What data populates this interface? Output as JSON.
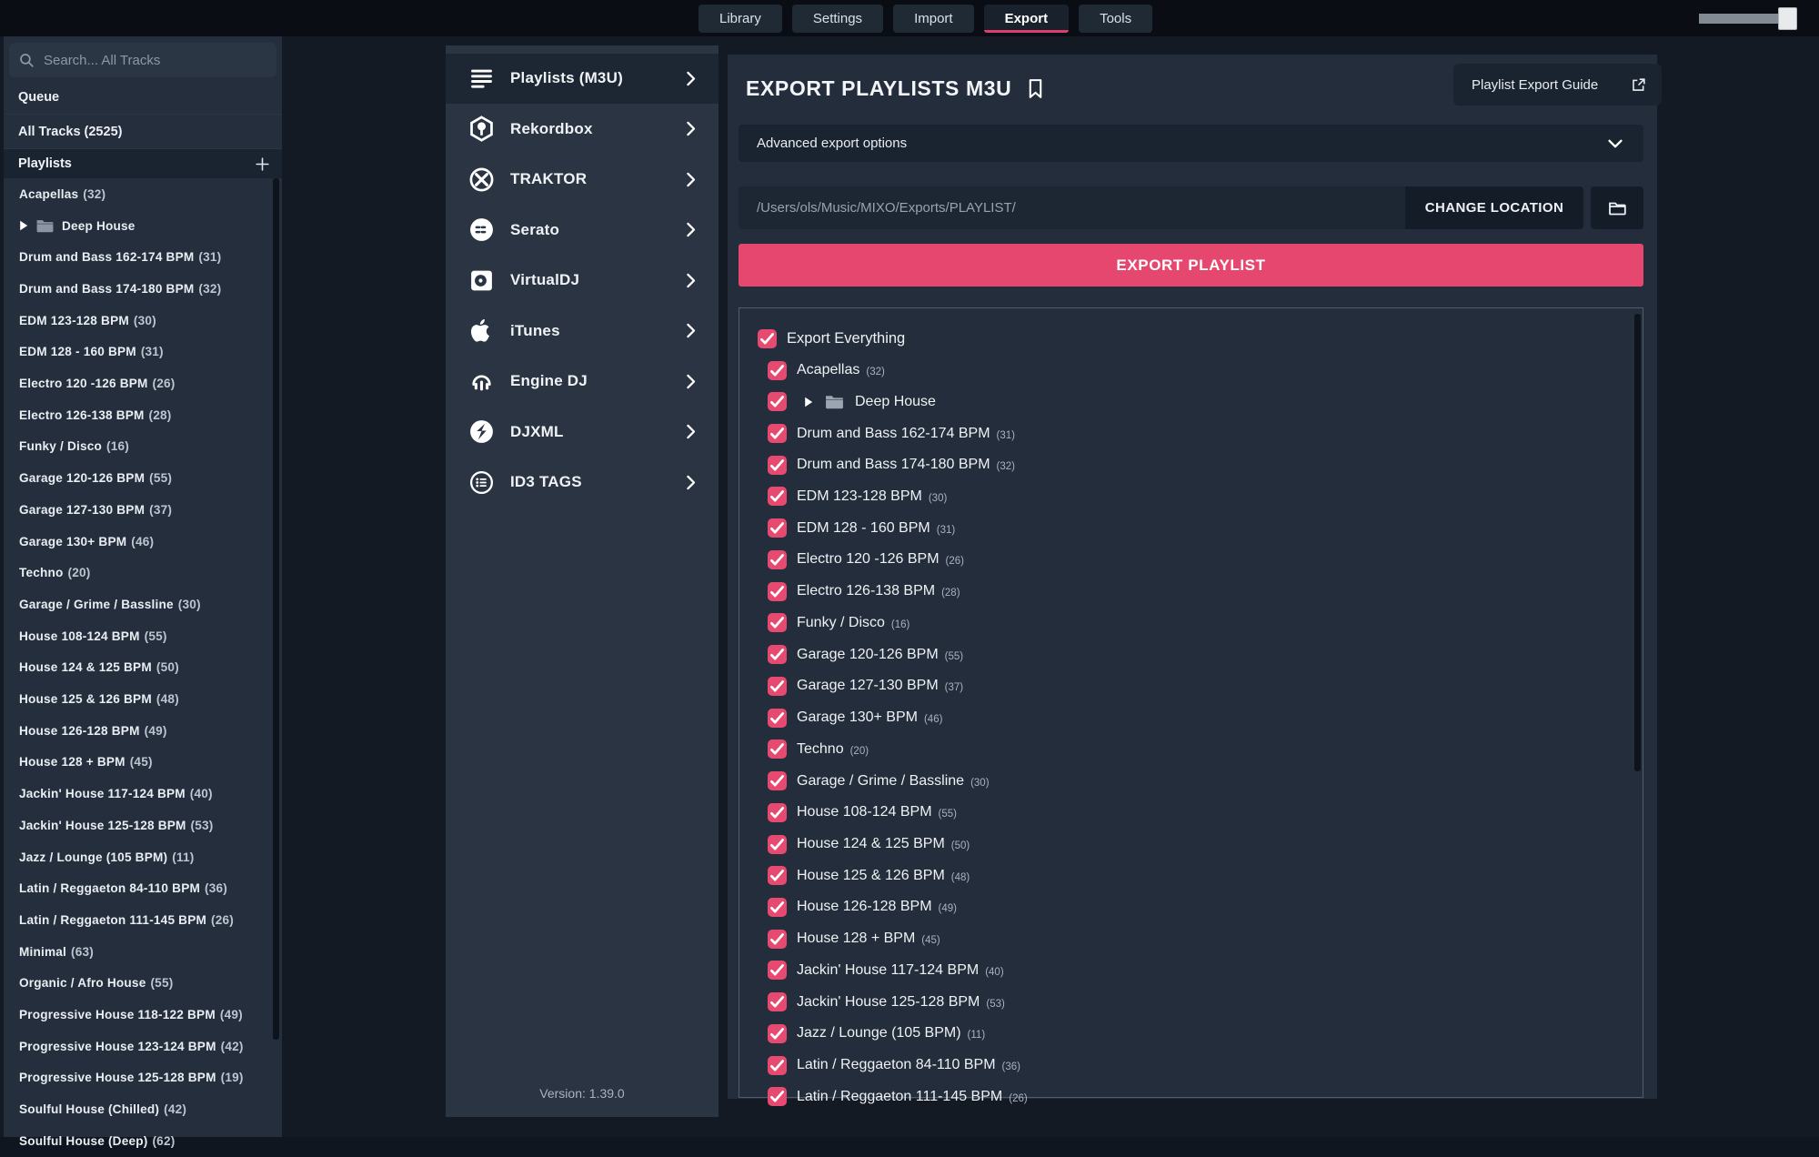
{
  "colors": {
    "accent": "#e5476f",
    "checkbox": "#e74a70",
    "panel_bg": "#232d3b",
    "page_bg": "#141a24"
  },
  "topbar": {
    "tabs": [
      {
        "label": "Library",
        "active": false
      },
      {
        "label": "Settings",
        "active": false
      },
      {
        "label": "Import",
        "active": false
      },
      {
        "label": "Export",
        "active": true
      },
      {
        "label": "Tools",
        "active": false
      }
    ]
  },
  "sidebar": {
    "search_placeholder": "Search... All Tracks",
    "queue_label": "Queue",
    "all_tracks_label": "All Tracks (2525)",
    "playlists_header": "Playlists",
    "items": [
      {
        "name": "Acapellas",
        "count": 32
      },
      {
        "name": "Deep House",
        "folder": true
      },
      {
        "name": "Drum and Bass 162-174 BPM",
        "count": 31
      },
      {
        "name": "Drum and Bass 174-180 BPM",
        "count": 32
      },
      {
        "name": "EDM 123-128 BPM",
        "count": 30
      },
      {
        "name": "EDM 128 - 160 BPM",
        "count": 31
      },
      {
        "name": "Electro 120 -126 BPM",
        "count": 26
      },
      {
        "name": "Electro 126-138 BPM",
        "count": 28
      },
      {
        "name": "Funky / Disco",
        "count": 16
      },
      {
        "name": "Garage 120-126 BPM",
        "count": 55
      },
      {
        "name": "Garage 127-130 BPM",
        "count": 37
      },
      {
        "name": "Garage 130+ BPM",
        "count": 46
      },
      {
        "name": "Techno",
        "count": 20
      },
      {
        "name": "Garage / Grime / Bassline",
        "count": 30
      },
      {
        "name": "House 108-124 BPM",
        "count": 55
      },
      {
        "name": "House 124 & 125 BPM",
        "count": 50
      },
      {
        "name": "House 125 & 126 BPM",
        "count": 48
      },
      {
        "name": "House 126-128 BPM",
        "count": 49
      },
      {
        "name": "House 128 + BPM",
        "count": 45
      },
      {
        "name": "Jackin' House 117-124 BPM",
        "count": 40
      },
      {
        "name": "Jackin' House 125-128 BPM",
        "count": 53
      },
      {
        "name": "Jazz / Lounge (105 BPM)",
        "count": 11
      },
      {
        "name": "Latin / Reggaeton 84-110 BPM",
        "count": 36
      },
      {
        "name": "Latin / Reggaeton 111-145 BPM",
        "count": 26
      },
      {
        "name": "Minimal",
        "count": 63
      },
      {
        "name": "Organic / Afro House",
        "count": 55
      },
      {
        "name": "Progressive House 118-122 BPM",
        "count": 49
      },
      {
        "name": "Progressive House 123-124 BPM",
        "count": 42
      },
      {
        "name": "Progressive House 125-128 BPM",
        "count": 19
      },
      {
        "name": "Soulful House (Chilled)",
        "count": 42
      },
      {
        "name": "Soulful House (Deep)",
        "count": 62
      }
    ]
  },
  "formats": {
    "items": [
      {
        "label": "Playlists (M3U)",
        "icon": "playlist-icon",
        "selected": true
      },
      {
        "label": "Rekordbox",
        "icon": "rekordbox-icon",
        "selected": false
      },
      {
        "label": "TRAKTOR",
        "icon": "traktor-icon",
        "selected": false
      },
      {
        "label": "Serato",
        "icon": "serato-icon",
        "selected": false
      },
      {
        "label": "VirtualDJ",
        "icon": "virtualdj-icon",
        "selected": false
      },
      {
        "label": "iTunes",
        "icon": "itunes-icon",
        "selected": false
      },
      {
        "label": "Engine DJ",
        "icon": "enginedj-icon",
        "selected": false
      },
      {
        "label": "DJXML",
        "icon": "djxml-icon",
        "selected": false
      },
      {
        "label": "ID3 TAGS",
        "icon": "id3-icon",
        "selected": false
      }
    ],
    "version": "Version: 1.39.0"
  },
  "export_panel": {
    "title": "EXPORT PLAYLISTS M3U",
    "guide_button": "Playlist Export Guide",
    "advanced_label": "Advanced export options",
    "path": "/Users/ols/Music/MIXO/Exports/PLAYLIST/",
    "change_location_label": "CHANGE LOCATION",
    "export_button_label": "EXPORT PLAYLIST",
    "export_everything_label": "Export Everything",
    "items": [
      {
        "name": "Acapellas",
        "count": 32,
        "checked": true
      },
      {
        "name": "Deep House",
        "folder": true,
        "checked": true
      },
      {
        "name": "Drum and Bass 162-174 BPM",
        "count": 31,
        "checked": true
      },
      {
        "name": "Drum and Bass 174-180 BPM",
        "count": 32,
        "checked": true
      },
      {
        "name": "EDM 123-128 BPM",
        "count": 30,
        "checked": true
      },
      {
        "name": "EDM 128 - 160 BPM",
        "count": 31,
        "checked": true
      },
      {
        "name": "Electro 120 -126 BPM",
        "count": 26,
        "checked": true
      },
      {
        "name": "Electro 126-138 BPM",
        "count": 28,
        "checked": true
      },
      {
        "name": "Funky / Disco",
        "count": 16,
        "checked": true
      },
      {
        "name": "Garage 120-126 BPM",
        "count": 55,
        "checked": true
      },
      {
        "name": "Garage 127-130 BPM",
        "count": 37,
        "checked": true
      },
      {
        "name": "Garage 130+ BPM",
        "count": 46,
        "checked": true
      },
      {
        "name": "Techno",
        "count": 20,
        "checked": true
      },
      {
        "name": "Garage / Grime / Bassline",
        "count": 30,
        "checked": true
      },
      {
        "name": "House 108-124 BPM",
        "count": 55,
        "checked": true
      },
      {
        "name": "House 124 & 125 BPM",
        "count": 50,
        "checked": true
      },
      {
        "name": "House 125 & 126 BPM",
        "count": 48,
        "checked": true
      },
      {
        "name": "House 126-128 BPM",
        "count": 49,
        "checked": true
      },
      {
        "name": "House 128 + BPM",
        "count": 45,
        "checked": true
      },
      {
        "name": "Jackin' House 117-124 BPM",
        "count": 40,
        "checked": true
      },
      {
        "name": "Jackin' House 125-128 BPM",
        "count": 53,
        "checked": true
      },
      {
        "name": "Jazz / Lounge (105 BPM)",
        "count": 11,
        "checked": true
      },
      {
        "name": "Latin / Reggaeton 84-110 BPM",
        "count": 36,
        "checked": true
      },
      {
        "name": "Latin / Reggaeton 111-145 BPM",
        "count": 26,
        "checked": true
      }
    ]
  }
}
